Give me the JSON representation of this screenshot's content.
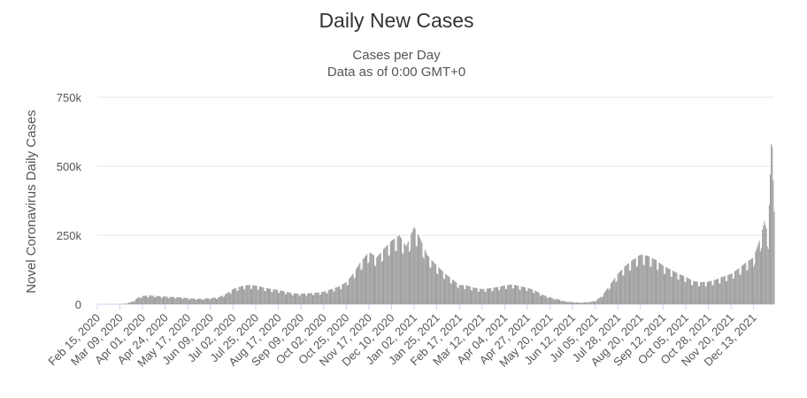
{
  "chart_data": {
    "type": "bar",
    "title": "Daily New Cases",
    "subtitle": [
      "Cases per Day",
      "Data as of 0:00 GMT+0"
    ],
    "ylabel": "Novel Coronavirus Daily Cases",
    "xlabel": "",
    "ylim": [
      0,
      750000
    ],
    "y_ticks": [
      0,
      250000,
      500000,
      750000
    ],
    "y_tick_labels": [
      "0",
      "250k",
      "500k",
      "750k"
    ],
    "x_ticks": [
      "Feb 15, 2020",
      "Mar 09, 2020",
      "Apr 01, 2020",
      "Apr 24, 2020",
      "May 17, 2020",
      "Jun 09, 2020",
      "Jul 02, 2020",
      "Jul 25, 2020",
      "Aug 17, 2020",
      "Sep 09, 2020",
      "Oct 02, 2020",
      "Oct 25, 2020",
      "Nov 17, 2020",
      "Dec 10, 2020",
      "Jan 02, 2021",
      "Jan 25, 2021",
      "Feb 17, 2021",
      "Mar 12, 2021",
      "Apr 04, 2021",
      "Apr 27, 2021",
      "May 20, 2021",
      "Jun 12, 2021",
      "Jul 05, 2021",
      "Jul 28, 2021",
      "Aug 20, 2021",
      "Sep 12, 2021",
      "Oct 05, 2021",
      "Oct 28, 2021",
      "Nov 20, 2021",
      "Dec 13, 2021"
    ],
    "grid": true,
    "legend": "none",
    "bar_color": "#9e9e9e",
    "series": [
      {
        "x": [
          "2020-02-15",
          "2020-02-25",
          "2020-03-05",
          "2020-03-09",
          "2020-03-15",
          "2020-03-22",
          "2020-03-28",
          "2020-04-01",
          "2020-04-08",
          "2020-04-15",
          "2020-04-24",
          "2020-05-03",
          "2020-05-10",
          "2020-05-17",
          "2020-05-25",
          "2020-06-01",
          "2020-06-09",
          "2020-06-17",
          "2020-06-25",
          "2020-07-02",
          "2020-07-10",
          "2020-07-17",
          "2020-07-25",
          "2020-08-03",
          "2020-08-10",
          "2020-08-17",
          "2020-08-25",
          "2020-09-01",
          "2020-09-09",
          "2020-09-18",
          "2020-09-25",
          "2020-10-02",
          "2020-10-10",
          "2020-10-18",
          "2020-10-25",
          "2020-11-01",
          "2020-11-08",
          "2020-11-17",
          "2020-11-25",
          "2020-12-02",
          "2020-12-10",
          "2020-12-18",
          "2020-12-25",
          "2021-01-02",
          "2021-01-08",
          "2021-01-15",
          "2021-01-25",
          "2021-02-03",
          "2021-02-10",
          "2021-02-17",
          "2021-02-25",
          "2021-03-04",
          "2021-03-12",
          "2021-03-20",
          "2021-03-27",
          "2021-04-04",
          "2021-04-12",
          "2021-04-20",
          "2021-04-27",
          "2021-05-05",
          "2021-05-12",
          "2021-05-20",
          "2021-05-28",
          "2021-06-05",
          "2021-06-12",
          "2021-06-20",
          "2021-06-28",
          "2021-07-05",
          "2021-07-12",
          "2021-07-20",
          "2021-07-28",
          "2021-08-05",
          "2021-08-12",
          "2021-08-20",
          "2021-08-28",
          "2021-09-05",
          "2021-09-12",
          "2021-09-20",
          "2021-09-28",
          "2021-10-05",
          "2021-10-12",
          "2021-10-20",
          "2021-10-28",
          "2021-11-05",
          "2021-11-12",
          "2021-11-20",
          "2021-11-28",
          "2021-12-05",
          "2021-12-13",
          "2021-12-20",
          "2021-12-24",
          "2021-12-28",
          "2021-12-31",
          "2022-01-01",
          "2022-01-02",
          "2022-01-03"
        ],
        "values": [
          0,
          0,
          0,
          1000,
          2000,
          10000,
          25000,
          30000,
          32000,
          30000,
          28000,
          26000,
          25000,
          22000,
          20000,
          20000,
          22000,
          25000,
          38000,
          55000,
          65000,
          70000,
          68000,
          60000,
          55000,
          52000,
          45000,
          40000,
          38000,
          40000,
          42000,
          45000,
          55000,
          65000,
          80000,
          110000,
          150000,
          190000,
          170000,
          200000,
          230000,
          250000,
          210000,
          280000,
          240000,
          180000,
          140000,
          110000,
          90000,
          70000,
          68000,
          60000,
          55000,
          58000,
          62000,
          68000,
          72000,
          65000,
          60000,
          50000,
          35000,
          25000,
          18000,
          10000,
          8000,
          6000,
          8000,
          12000,
          30000,
          70000,
          110000,
          140000,
          160000,
          180000,
          175000,
          160000,
          140000,
          125000,
          110000,
          100000,
          85000,
          80000,
          82000,
          90000,
          100000,
          110000,
          130000,
          150000,
          170000,
          240000,
          300000,
          250000,
          580000,
          570000,
          450000,
          420000
        ]
      }
    ]
  }
}
